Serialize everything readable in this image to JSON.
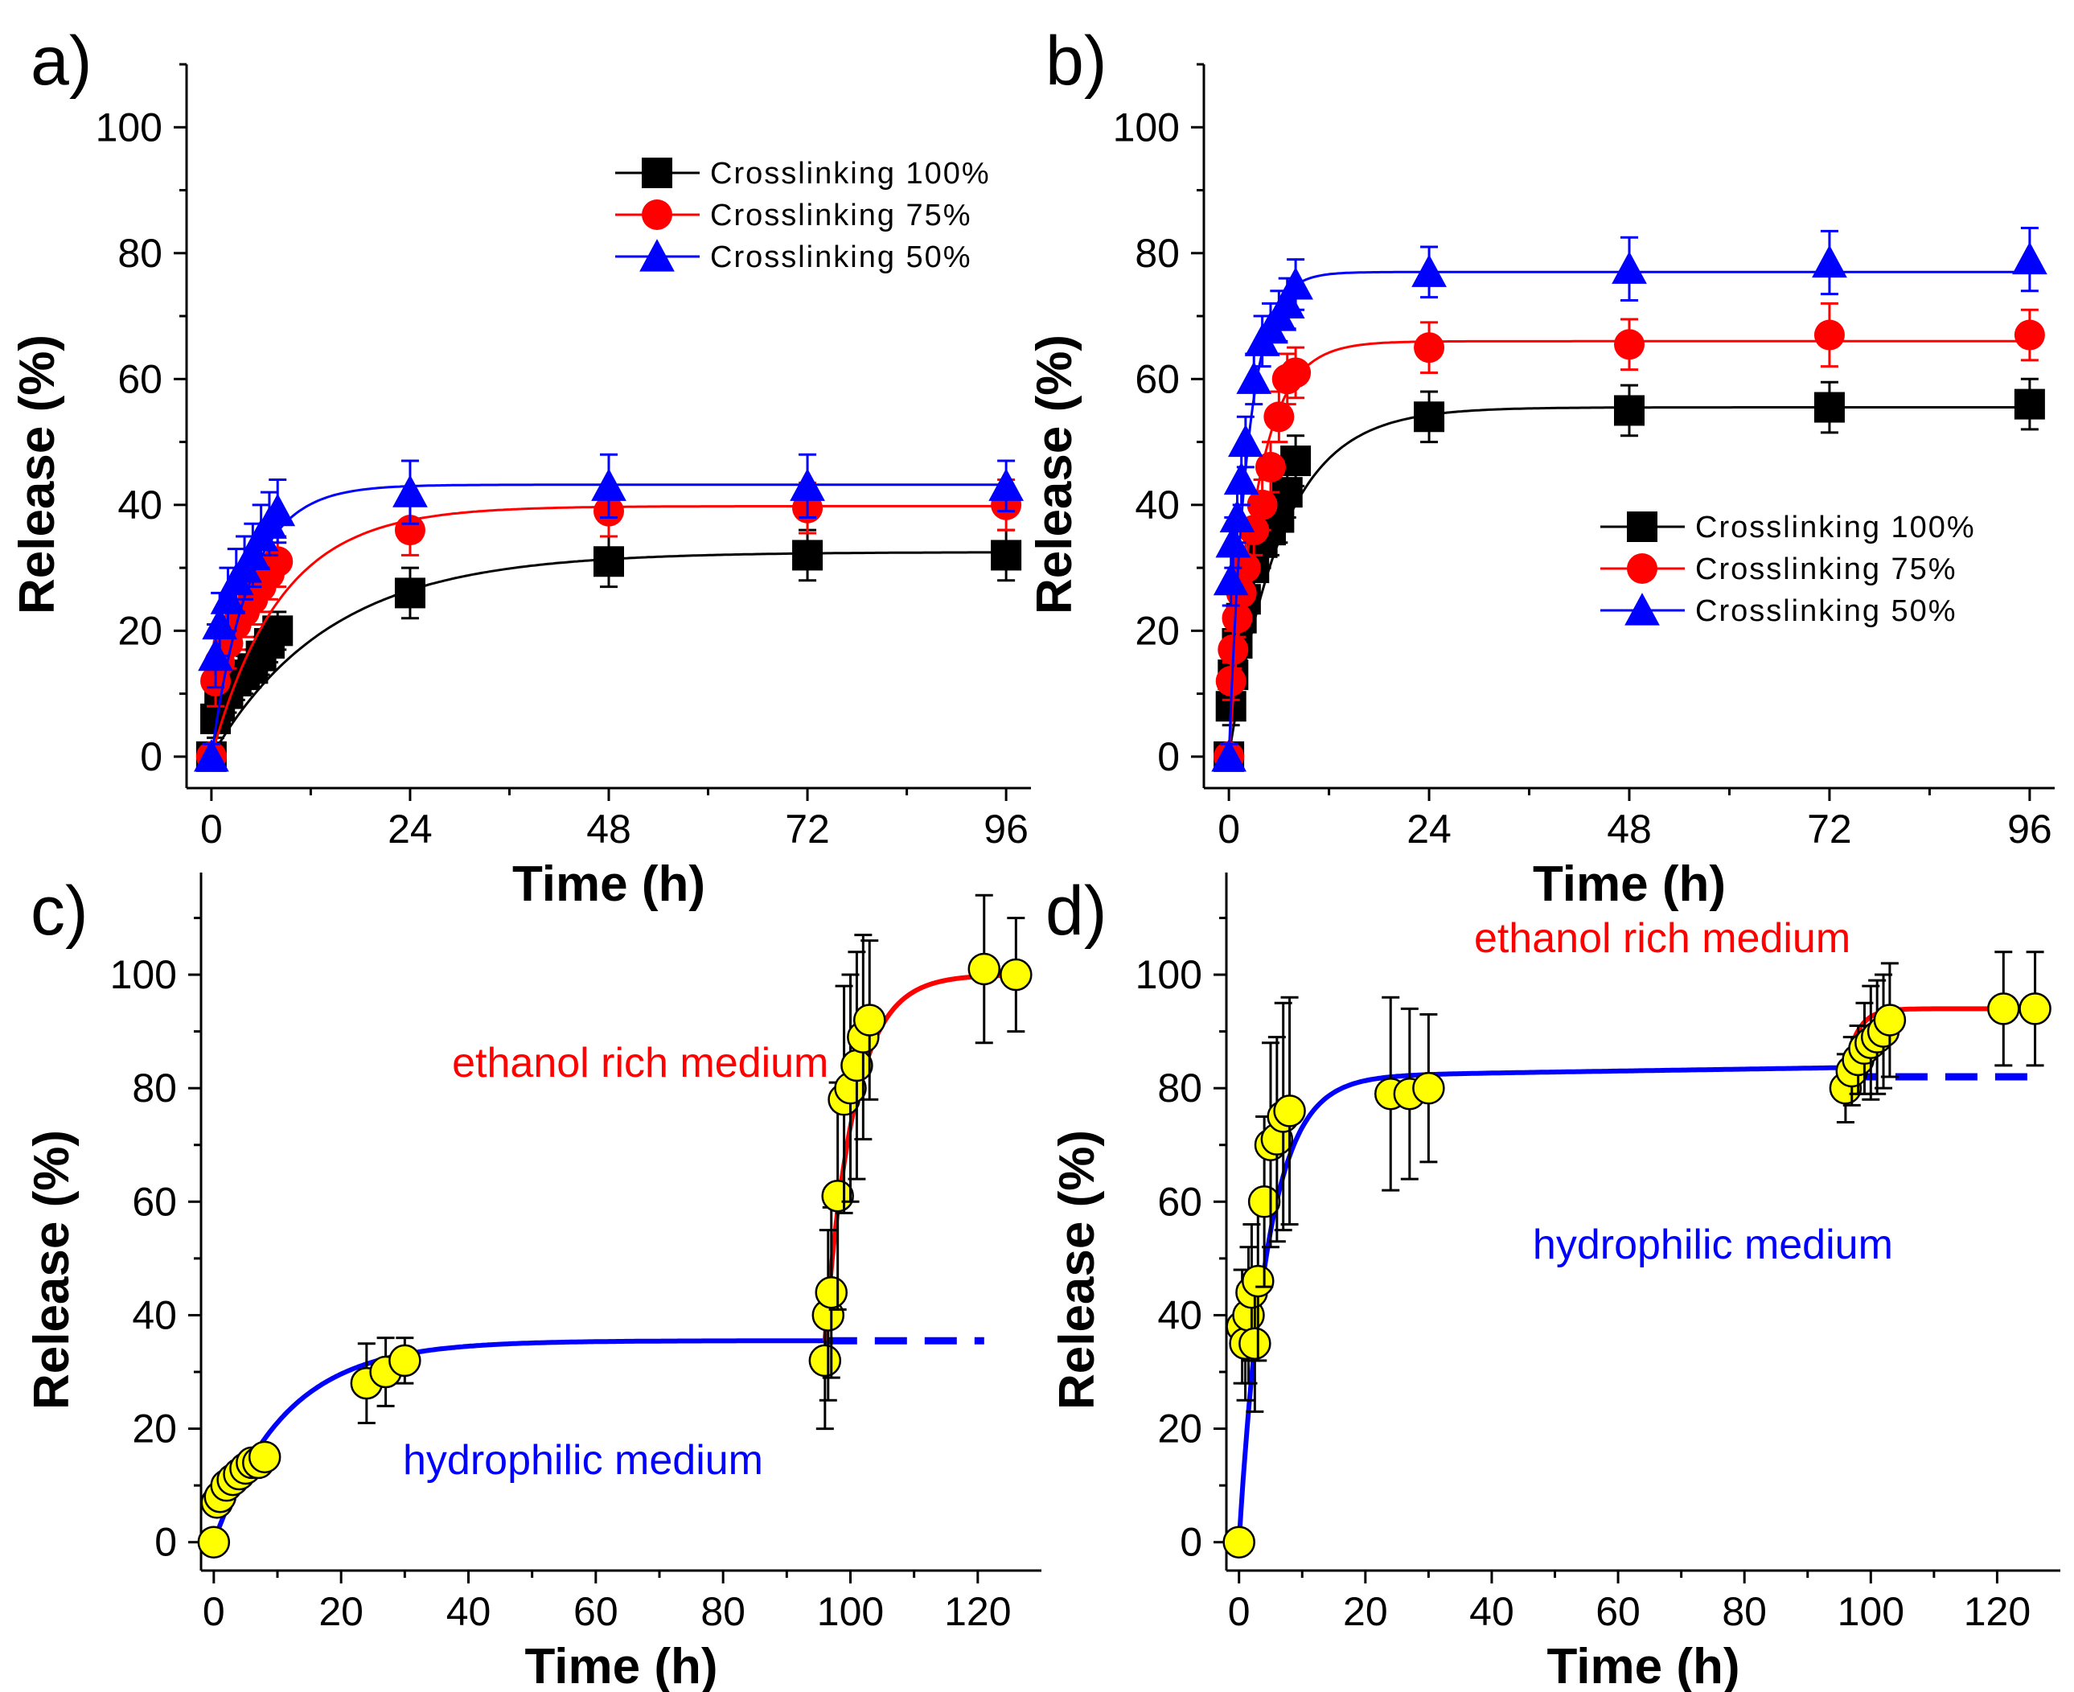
{
  "colors": {
    "s100": "#000000",
    "s75": "#ff0000",
    "s50": "#0000ff",
    "point_fill": "#ffff00",
    "fit_blue": "#0000ff",
    "fit_red": "#ff0000"
  },
  "chart_data": [
    {
      "id": "a",
      "panel_label": "a)",
      "type": "scatter",
      "xlabel": "Time (h)",
      "ylabel": "Release (%)",
      "xlim": [
        -3,
        99
      ],
      "ylim": [
        -5,
        110
      ],
      "xticks": [
        0,
        24,
        48,
        72,
        96
      ],
      "yticks": [
        0,
        20,
        40,
        60,
        80,
        100
      ],
      "legend_position": "top-right",
      "series": [
        {
          "name": "Crosslinking 100%",
          "marker": "square",
          "color": "#000000",
          "x": [
            0,
            0.5,
            1,
            2,
            3,
            4,
            5,
            6,
            7,
            8,
            24,
            48,
            72,
            96
          ],
          "y": [
            0,
            6,
            8,
            10,
            12,
            13,
            14,
            16,
            18,
            20,
            26,
            31,
            32,
            32
          ],
          "err": [
            2,
            3,
            3,
            3,
            3,
            3,
            3,
            3,
            3,
            3,
            4,
            4,
            4,
            4
          ],
          "fit": {
            "a": 32.5,
            "k": 0.07
          }
        },
        {
          "name": "Crosslinking 75%",
          "marker": "circle",
          "color": "#ff0000",
          "x": [
            0,
            0.5,
            1,
            2,
            3,
            4,
            5,
            6,
            7,
            8,
            24,
            48,
            72,
            96
          ],
          "y": [
            0,
            12,
            15,
            18,
            21,
            23,
            25,
            27,
            29,
            31,
            36,
            39,
            39.5,
            40
          ],
          "err": [
            2,
            4,
            4,
            4,
            4,
            4,
            4,
            4,
            4,
            4,
            4,
            4,
            4,
            4
          ],
          "fit": {
            "a": 39.8,
            "k": 0.12
          }
        },
        {
          "name": "Crosslinking 50%",
          "marker": "triangle",
          "color": "#0000ff",
          "x": [
            0,
            0.5,
            1,
            2,
            3,
            4,
            5,
            6,
            7,
            8,
            24,
            48,
            72,
            96
          ],
          "y": [
            0,
            16,
            21,
            25,
            28,
            30,
            32,
            35,
            37,
            39,
            42,
            43,
            43,
            43
          ],
          "err": [
            2,
            5,
            5,
            5,
            5,
            5,
            5,
            5,
            5,
            5,
            5,
            5,
            5,
            4
          ],
          "fit": {
            "a": 43.2,
            "k": 0.22
          }
        }
      ]
    },
    {
      "id": "b",
      "panel_label": "b)",
      "type": "scatter",
      "xlabel": "Time (h)",
      "ylabel": "Release (%)",
      "xlim": [
        -3,
        99
      ],
      "ylim": [
        -5,
        110
      ],
      "xticks": [
        0,
        24,
        48,
        72,
        96
      ],
      "yticks": [
        0,
        20,
        40,
        60,
        80,
        100
      ],
      "legend_position": "center-right",
      "series": [
        {
          "name": "Crosslinking 100%",
          "marker": "square",
          "color": "#000000",
          "x": [
            0,
            0.25,
            0.5,
            1,
            1.5,
            2,
            3,
            4,
            5,
            6,
            7,
            8,
            24,
            48,
            72,
            96
          ],
          "y": [
            0,
            8,
            13,
            18,
            22,
            25,
            30,
            34,
            36,
            38,
            42,
            47,
            54,
            55,
            55.5,
            56
          ],
          "err": [
            2,
            3,
            3,
            3,
            3,
            3,
            4,
            4,
            4,
            4,
            4,
            4,
            4,
            4,
            4,
            4
          ],
          "fit": {
            "a": 55.5,
            "k": 0.16
          }
        },
        {
          "name": "Crosslinking 75%",
          "marker": "circle",
          "color": "#ff0000",
          "x": [
            0,
            0.25,
            0.5,
            1,
            1.5,
            2,
            3,
            4,
            5,
            6,
            7,
            8,
            24,
            48,
            72,
            96
          ],
          "y": [
            0,
            12,
            17,
            22,
            26,
            30,
            36,
            40,
            46,
            54,
            60,
            61,
            65,
            65.5,
            67,
            67
          ],
          "err": [
            2,
            3,
            3,
            3,
            4,
            4,
            4,
            4,
            4,
            4,
            4,
            4,
            4,
            4,
            5,
            4
          ],
          "fit": {
            "a": 66,
            "k": 0.3
          }
        },
        {
          "name": "Crosslinking 50%",
          "marker": "triangle",
          "color": "#0000ff",
          "x": [
            0,
            0.25,
            0.5,
            1,
            1.5,
            2,
            3,
            4,
            5,
            6,
            7,
            8,
            24,
            48,
            72,
            96
          ],
          "y": [
            0,
            28,
            34,
            38,
            44,
            50,
            60,
            66,
            68,
            70,
            72,
            75,
            77,
            77.5,
            78.5,
            79
          ],
          "err": [
            2,
            4,
            4,
            4,
            4,
            4,
            4,
            4,
            4,
            4,
            4,
            4,
            4,
            5,
            5,
            5
          ],
          "fit": {
            "a": 77,
            "k": 0.45
          }
        }
      ]
    },
    {
      "id": "c",
      "panel_label": "c)",
      "type": "scatter",
      "xlabel": "Time (h)",
      "ylabel": "Release (%)",
      "xlim": [
        -2,
        130
      ],
      "ylim": [
        -5,
        118
      ],
      "xticks": [
        0,
        20,
        40,
        60,
        80,
        100,
        120
      ],
      "yticks": [
        0,
        20,
        40,
        60,
        80,
        100
      ],
      "annotations": [
        {
          "text": "ethanol rich medium",
          "x": 67,
          "y": 82,
          "color": "#ff0000"
        },
        {
          "text": "hydrophilic medium",
          "x": 58,
          "y": 12,
          "color": "#0000ff"
        }
      ],
      "series": [
        {
          "name": "Release",
          "marker": "circle",
          "color": "#ffff00",
          "x": [
            0,
            0.5,
            1,
            2,
            3,
            4,
            5,
            6,
            7,
            8,
            24,
            27,
            30,
            96,
            96.5,
            97,
            98,
            99,
            100,
            101,
            102,
            103,
            121,
            126
          ],
          "y": [
            0,
            7,
            8,
            10,
            11,
            12,
            13,
            14,
            14,
            15,
            28,
            30,
            32,
            32,
            40,
            44,
            61,
            78,
            80,
            84,
            89,
            92,
            101,
            100
          ],
          "err": [
            1,
            2,
            2,
            2,
            2,
            2,
            2,
            2,
            2,
            2,
            7,
            6,
            4,
            12,
            15,
            15,
            20,
            20,
            20,
            20,
            18,
            14,
            13,
            10
          ]
        }
      ],
      "fits": [
        {
          "name": "hydrophilic fit",
          "color": "#0000ff",
          "x0": 0,
          "x1": 96,
          "y0": 0,
          "a": 35.5,
          "k": 0.09
        },
        {
          "name": "hydrophilic plateau",
          "color": "#0000ff",
          "dashed": true,
          "x0": 96,
          "x1": 121,
          "value": 35.5
        },
        {
          "name": "ethanol fit",
          "color": "#ff0000",
          "x0": 96,
          "x1": 126,
          "y0": 35.5,
          "a": 100,
          "k": 0.22
        }
      ]
    },
    {
      "id": "d",
      "panel_label": "d)",
      "type": "scatter",
      "xlabel": "Time (h)",
      "ylabel": "Release (%)",
      "xlim": [
        -2,
        130
      ],
      "ylim": [
        -5,
        118
      ],
      "xticks": [
        0,
        20,
        40,
        60,
        80,
        100,
        120
      ],
      "yticks": [
        0,
        20,
        40,
        60,
        80,
        100
      ],
      "annotations": [
        {
          "text": "ethanol rich medium",
          "x": 67,
          "y": 104,
          "color": "#ff0000"
        },
        {
          "text": "hydrophilic medium",
          "x": 75,
          "y": 50,
          "color": "#0000ff"
        }
      ],
      "series": [
        {
          "name": "Release",
          "marker": "circle",
          "color": "#ffff00",
          "x": [
            0,
            0.5,
            1,
            1.5,
            2,
            2.5,
            3,
            4,
            5,
            6,
            7,
            8,
            24,
            27,
            30,
            96,
            97,
            98,
            99,
            100,
            101,
            102,
            103,
            121,
            126
          ],
          "y": [
            0,
            38,
            35,
            40,
            44,
            35,
            46,
            60,
            70,
            71,
            75,
            76,
            79,
            79,
            80,
            80,
            83,
            85,
            87,
            88,
            89,
            90,
            92,
            94,
            94
          ],
          "err": [
            1,
            10,
            10,
            12,
            12,
            12,
            14,
            15,
            18,
            18,
            20,
            20,
            17,
            15,
            13,
            6,
            6,
            6,
            8,
            10,
            10,
            10,
            10,
            10,
            10
          ]
        }
      ],
      "fits": [
        {
          "name": "hydrophilic fit",
          "color": "#0000ff",
          "x0": 0,
          "x1": 96,
          "y0": 0,
          "a": 82,
          "k": 0.22,
          "drift": 0.017
        },
        {
          "name": "hydrophilic plateau",
          "color": "#0000ff",
          "dashed": true,
          "x0": 96,
          "x1": 126,
          "value": 82
        },
        {
          "name": "ethanol fit",
          "color": "#ff0000",
          "x0": 96,
          "x1": 126,
          "y0": 83.5,
          "a": 94,
          "k": 0.5
        }
      ]
    }
  ]
}
